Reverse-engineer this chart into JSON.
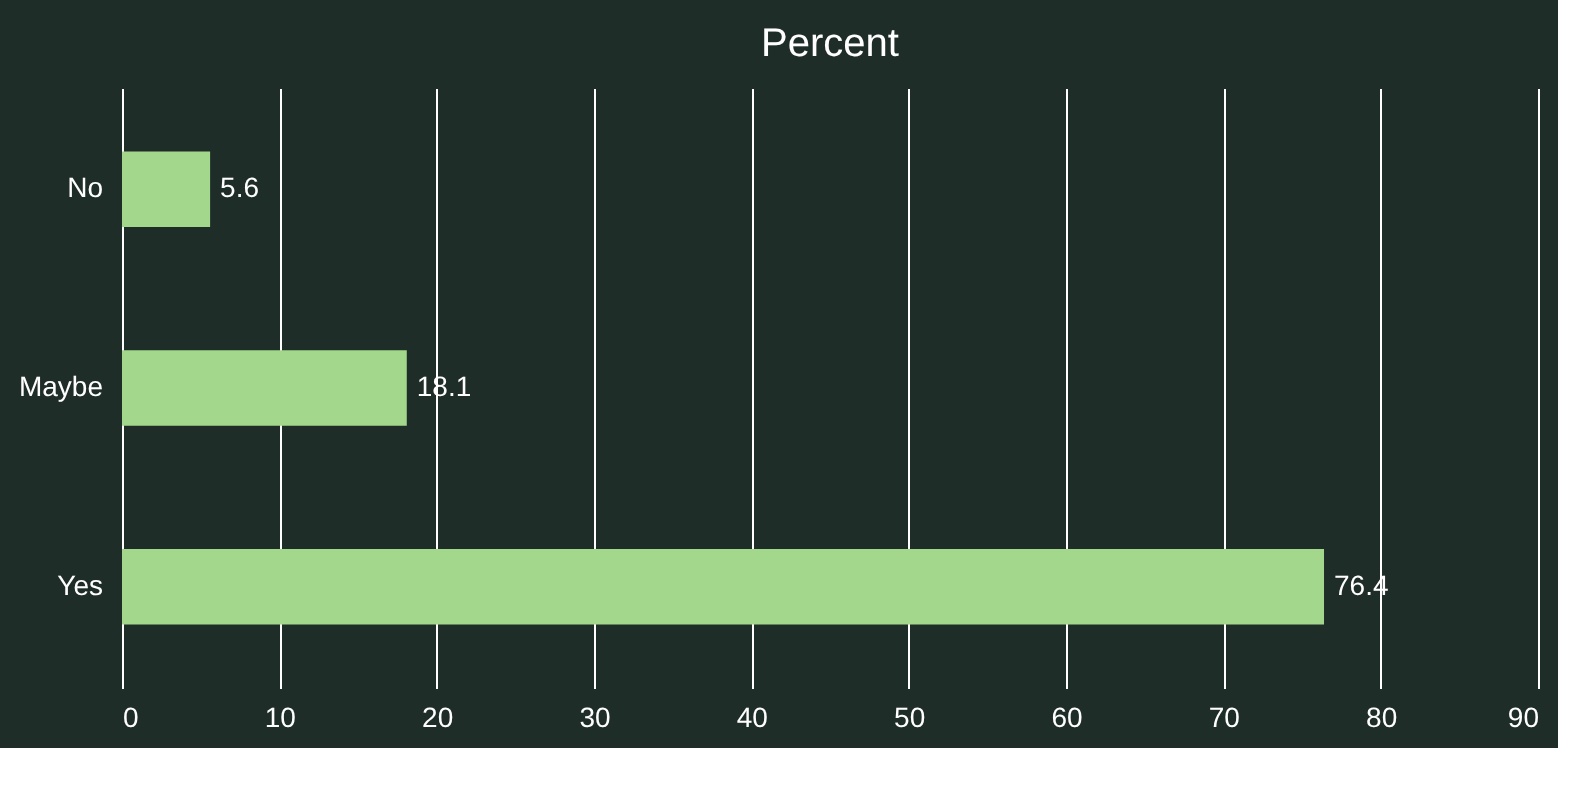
{
  "chart_data": {
    "type": "bar",
    "orientation": "horizontal",
    "title": "Percent",
    "categories": [
      "No",
      "Maybe",
      "Yes"
    ],
    "values": [
      5.6,
      18.1,
      76.4
    ],
    "color": "#a3d88c",
    "xlim": [
      0,
      90
    ],
    "xticks": [
      0,
      10,
      20,
      30,
      40,
      50,
      60,
      70,
      80,
      90
    ],
    "grid": "x",
    "data_labels": true
  }
}
